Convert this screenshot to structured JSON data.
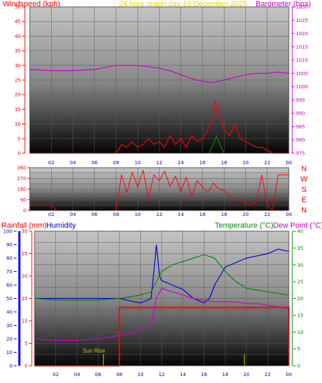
{
  "header": {
    "windspeed_label": "Windspeed (kph)",
    "title": "24 hour graph day   10 December 2025",
    "barometer_label": "Barometer (hpa)",
    "rainfall_label": "Rainfall (mm)",
    "humidity_label": "Humidity",
    "temperature_label": "Temperature (°C)",
    "dewpoint_label": "Dew Point (°C)"
  },
  "colors": {
    "windspeed": "#ff0000",
    "barometer": "#cc00cc",
    "title": "#e8d800",
    "humidity": "#0000cc",
    "temperature": "#008800",
    "dewpoint": "#cc00cc",
    "rain": "#ff0000",
    "wind_dir": "#ff0000",
    "sunrise": "#c8c800"
  },
  "direction_labels": [
    "N",
    "W",
    "S",
    "E",
    "N"
  ],
  "annotations": {
    "sunrise": "Sun Rise"
  },
  "chart_data": [
    {
      "type": "line",
      "name": "wind-and-pressure",
      "x_ticks": [
        "02",
        "04",
        "06",
        "08",
        "10",
        "12",
        "14",
        "16",
        "18",
        "20",
        "22",
        "00"
      ],
      "xlim": [
        0,
        24
      ],
      "y_left": {
        "ticks": [
          0,
          5,
          10,
          15,
          20,
          25,
          30,
          35,
          40,
          45,
          50
        ],
        "range": [
          0,
          50
        ]
      },
      "y_right": {
        "ticks": [
          975,
          980,
          985,
          990,
          995,
          1000,
          1005,
          1010,
          1015,
          1020,
          1025,
          1030
        ],
        "range": [
          975,
          1030
        ]
      },
      "series": [
        {
          "name": "Barometer",
          "axis": "right",
          "color": "#cc00cc",
          "x": [
            0,
            2,
            4,
            6,
            8,
            9,
            10,
            11,
            12,
            13,
            14,
            15,
            16,
            16.8,
            17.5,
            18,
            19,
            20,
            21,
            22,
            23,
            24
          ],
          "y": [
            1006.5,
            1006,
            1006,
            1006.5,
            1008,
            1008,
            1008,
            1007.5,
            1007,
            1006,
            1004.5,
            1003,
            1002,
            1001.5,
            1002,
            1002.5,
            1003.5,
            1004.5,
            1005,
            1005,
            1005.5,
            1005
          ]
        },
        {
          "name": "Wind",
          "axis": "left",
          "color": "#ff0000",
          "x": [
            0,
            8,
            8.5,
            9,
            9.5,
            10,
            10.5,
            11,
            11.5,
            12,
            12.5,
            13,
            13.5,
            14,
            14.5,
            15,
            15.5,
            16,
            16.5,
            17,
            17.2,
            17.5,
            18,
            18.5,
            19,
            19.5,
            20,
            20.5,
            21,
            21.5,
            22,
            22.5,
            24
          ],
          "y": [
            0,
            0,
            3,
            2,
            4,
            2,
            3,
            5,
            3,
            4,
            2,
            6,
            3,
            5,
            2,
            6,
            4,
            5,
            8,
            12,
            18,
            14,
            8,
            6,
            10,
            5,
            4,
            3,
            2,
            2,
            1,
            0,
            0
          ]
        },
        {
          "name": "Gust",
          "axis": "left",
          "color": "#008800",
          "x": [
            16.6,
            17,
            17.3,
            17.6,
            18
          ],
          "y": [
            0,
            3,
            6,
            3,
            0
          ]
        }
      ]
    },
    {
      "type": "scatter",
      "name": "wind-direction",
      "x_ticks": [
        "02",
        "04",
        "06",
        "08",
        "10",
        "12",
        "14",
        "16",
        "18",
        "20",
        "22",
        "00"
      ],
      "xlim": [
        0,
        24
      ],
      "y_ticks": [
        0,
        45,
        90,
        135,
        180,
        225,
        270,
        315,
        360
      ],
      "ylim": [
        0,
        360
      ],
      "series": [
        {
          "name": "Direction",
          "color": "#ff0000",
          "x": [
            0,
            1,
            2,
            2.5,
            8,
            8.5,
            9,
            9.5,
            10,
            10.5,
            11,
            11.5,
            12,
            12.5,
            13,
            13.5,
            14,
            14.5,
            15,
            15.5,
            16,
            16.5,
            17,
            17.5,
            18,
            18.5,
            19,
            19.5,
            20,
            20.5,
            21,
            21.5,
            22,
            22.5,
            23,
            24
          ],
          "y": [
            45,
            45,
            45,
            0,
            0,
            300,
            150,
            320,
            200,
            340,
            100,
            300,
            250,
            330,
            200,
            290,
            160,
            280,
            120,
            250,
            200,
            150,
            230,
            180,
            170,
            120,
            100,
            90,
            60,
            45,
            80,
            300,
            40,
            0,
            300,
            300
          ]
        }
      ]
    },
    {
      "type": "line",
      "name": "rain-humidity-temperature",
      "x_ticks": [
        "02",
        "04",
        "06",
        "08",
        "10",
        "12",
        "14",
        "16",
        "18",
        "20",
        "22",
        "00"
      ],
      "xlim": [
        0,
        24
      ],
      "y_rain": {
        "ticks": [
          0,
          10,
          20,
          30,
          40,
          50,
          60,
          70,
          80,
          90,
          100
        ],
        "range": [
          0,
          100
        ]
      },
      "y_humidity": {
        "ticks": [
          0,
          5,
          10,
          15,
          20,
          25,
          30
        ],
        "range": [
          0,
          30
        ]
      },
      "y_temp": {
        "ticks": [
          0,
          5,
          10,
          15,
          20,
          25,
          30,
          35,
          40
        ],
        "range": [
          0,
          40
        ]
      },
      "series": [
        {
          "name": "Humidity",
          "color": "#0000cc",
          "x": [
            0,
            2,
            4,
            6,
            8,
            9,
            10,
            11,
            11.3,
            11.5,
            11.8,
            12,
            13,
            14,
            15,
            16,
            16.5,
            17,
            18,
            19,
            20,
            21,
            22,
            23,
            24
          ],
          "y": [
            15,
            15,
            15,
            15,
            15,
            14.5,
            14,
            15,
            22,
            27,
            20,
            19,
            18,
            17,
            15,
            14,
            15,
            18,
            22,
            23,
            24,
            24.5,
            25,
            26,
            25.5
          ]
        },
        {
          "name": "Temperature",
          "color": "#008800",
          "x": [
            0,
            2,
            4,
            6,
            8,
            9,
            10,
            11,
            12,
            13,
            14,
            15,
            16,
            17,
            18,
            19,
            20,
            21,
            22,
            23,
            24
          ],
          "y": [
            20,
            19.5,
            19.5,
            19.5,
            20,
            20.5,
            21,
            22,
            28,
            30,
            31,
            32,
            33,
            32,
            28,
            25,
            23,
            22.5,
            22,
            21.5,
            21
          ]
        },
        {
          "name": "Dew Point",
          "color": "#cc00cc",
          "x": [
            0,
            2,
            4,
            6,
            8,
            9,
            10,
            11,
            11.5,
            12,
            13,
            14,
            15,
            16,
            17,
            18,
            19,
            20,
            21,
            22,
            23,
            24
          ],
          "y": [
            8,
            7.5,
            7.5,
            8,
            9,
            9.5,
            11,
            12,
            20,
            23,
            22,
            21,
            20,
            19.5,
            19,
            19,
            19,
            18.5,
            18.5,
            18,
            17.5,
            17
          ]
        },
        {
          "name": "Rainfall",
          "color": "#ff0000",
          "x": [
            0,
            8,
            8,
            24,
            24
          ],
          "y": [
            0,
            0,
            13,
            13,
            0
          ]
        }
      ]
    }
  ]
}
